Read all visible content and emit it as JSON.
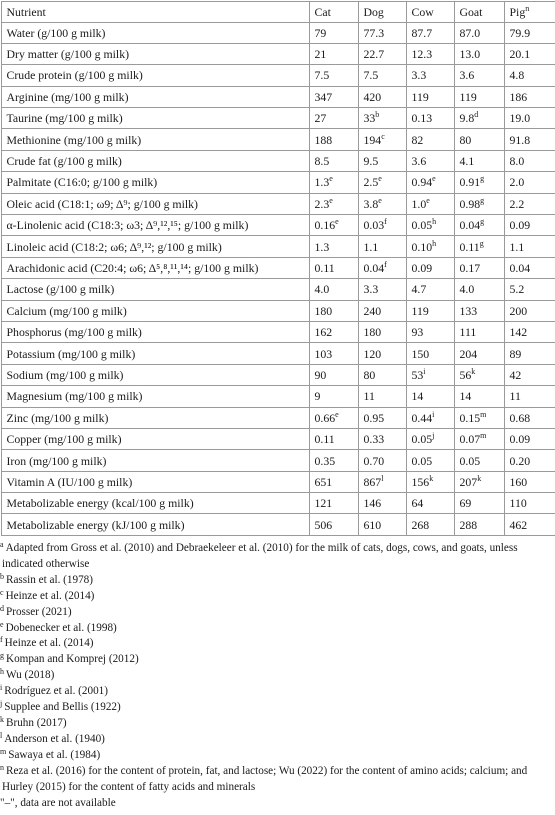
{
  "table": {
    "columns": [
      "Nutrient",
      "Cat",
      "Dog",
      "Cow",
      "Goat",
      "Pig"
    ],
    "column_markers": [
      "",
      "",
      "",
      "",
      "",
      "n"
    ],
    "rows": [
      {
        "label": "Water (g/100 g milk)",
        "values": [
          [
            "79",
            ""
          ],
          [
            "77.3",
            ""
          ],
          [
            "87.7",
            ""
          ],
          [
            "87.0",
            ""
          ],
          [
            "79.9",
            ""
          ]
        ]
      },
      {
        "label": "Dry matter (g/100 g milk)",
        "values": [
          [
            "21",
            ""
          ],
          [
            "22.7",
            ""
          ],
          [
            "12.3",
            ""
          ],
          [
            "13.0",
            ""
          ],
          [
            "20.1",
            ""
          ]
        ]
      },
      {
        "label": "Crude protein (g/100 g milk)",
        "values": [
          [
            "7.5",
            ""
          ],
          [
            "7.5",
            ""
          ],
          [
            "3.3",
            ""
          ],
          [
            "3.6",
            ""
          ],
          [
            "4.8",
            ""
          ]
        ]
      },
      {
        "label": "Arginine (mg/100 g milk)",
        "values": [
          [
            "347",
            ""
          ],
          [
            "420",
            ""
          ],
          [
            "119",
            ""
          ],
          [
            "119",
            ""
          ],
          [
            "186",
            ""
          ]
        ]
      },
      {
        "label": "Taurine (mg/100 g milk)",
        "values": [
          [
            "27",
            ""
          ],
          [
            "33",
            "b"
          ],
          [
            "0.13",
            ""
          ],
          [
            "9.8",
            "d"
          ],
          [
            "19.0",
            ""
          ]
        ]
      },
      {
        "label": "Methionine (mg/100 g milk)",
        "values": [
          [
            "188",
            ""
          ],
          [
            "194",
            "c"
          ],
          [
            "82",
            ""
          ],
          [
            "80",
            ""
          ],
          [
            "91.8",
            ""
          ]
        ]
      },
      {
        "label": "Crude fat (g/100 g milk)",
        "values": [
          [
            "8.5",
            ""
          ],
          [
            "9.5",
            ""
          ],
          [
            "3.6",
            ""
          ],
          [
            "4.1",
            ""
          ],
          [
            "8.0",
            ""
          ]
        ]
      },
      {
        "label": "Palmitate (C16:0; g/100 g milk)",
        "values": [
          [
            "1.3",
            "e"
          ],
          [
            "2.5",
            "e"
          ],
          [
            "0.94",
            "e"
          ],
          [
            "0.91",
            "g"
          ],
          [
            "2.0",
            ""
          ]
        ]
      },
      {
        "label": "Oleic acid (C18:1; ω9; Δ⁹; g/100 g milk)",
        "values": [
          [
            "2.3",
            "e"
          ],
          [
            "3.8",
            "e"
          ],
          [
            "1.0",
            "e"
          ],
          [
            "0.98",
            "g"
          ],
          [
            "2.2",
            ""
          ]
        ]
      },
      {
        "label": "α-Linolenic acid (C18:3; ω3; Δ⁹,¹²,¹⁵; g/100 g milk)",
        "values": [
          [
            "0.16",
            "e"
          ],
          [
            "0.03",
            "f"
          ],
          [
            "0.05",
            "h"
          ],
          [
            "0.04",
            "g"
          ],
          [
            "0.09",
            ""
          ]
        ]
      },
      {
        "label": "Linoleic acid (C18:2; ω6; Δ⁹,¹²; g/100 g milk)",
        "values": [
          [
            "1.3",
            ""
          ],
          [
            "1.1",
            ""
          ],
          [
            "0.10",
            "h"
          ],
          [
            "0.11",
            "g"
          ],
          [
            "1.1",
            ""
          ]
        ]
      },
      {
        "label": "Arachidonic acid (C20:4; ω6; Δ⁵,⁸,¹¹,¹⁴; g/100 g milk)",
        "values": [
          [
            "0.11",
            ""
          ],
          [
            "0.04",
            "f"
          ],
          [
            "0.09",
            ""
          ],
          [
            "0.17",
            ""
          ],
          [
            "0.04",
            ""
          ]
        ]
      },
      {
        "label": "Lactose (g/100 g milk)",
        "values": [
          [
            "4.0",
            ""
          ],
          [
            "3.3",
            ""
          ],
          [
            "4.7",
            ""
          ],
          [
            "4.0",
            ""
          ],
          [
            "5.2",
            ""
          ]
        ]
      },
      {
        "label": "Calcium (mg/100 g milk)",
        "values": [
          [
            "180",
            ""
          ],
          [
            "240",
            ""
          ],
          [
            "119",
            ""
          ],
          [
            "133",
            ""
          ],
          [
            "200",
            ""
          ]
        ]
      },
      {
        "label": "Phosphorus (mg/100 g milk)",
        "values": [
          [
            "162",
            ""
          ],
          [
            "180",
            ""
          ],
          [
            "93",
            ""
          ],
          [
            "111",
            ""
          ],
          [
            "142",
            ""
          ]
        ]
      },
      {
        "label": "Potassium (mg/100 g milk)",
        "values": [
          [
            "103",
            ""
          ],
          [
            "120",
            ""
          ],
          [
            "150",
            ""
          ],
          [
            "204",
            ""
          ],
          [
            "89",
            ""
          ]
        ]
      },
      {
        "label": "Sodium (mg/100 g milk)",
        "values": [
          [
            "90",
            ""
          ],
          [
            "80",
            ""
          ],
          [
            "53",
            "i"
          ],
          [
            "56",
            "k"
          ],
          [
            "42",
            ""
          ]
        ]
      },
      {
        "label": "Magnesium (mg/100 g milk)",
        "values": [
          [
            "9",
            ""
          ],
          [
            "11",
            ""
          ],
          [
            "14",
            ""
          ],
          [
            "14",
            ""
          ],
          [
            "11",
            ""
          ]
        ]
      },
      {
        "label": "Zinc (mg/100 g milk)",
        "values": [
          [
            "0.66",
            "e"
          ],
          [
            "0.95",
            ""
          ],
          [
            "0.44",
            "i"
          ],
          [
            "0.15",
            "m"
          ],
          [
            "0.68",
            ""
          ]
        ]
      },
      {
        "label": "Copper (mg/100 g milk)",
        "values": [
          [
            "0.11",
            ""
          ],
          [
            "0.33",
            ""
          ],
          [
            "0.05",
            "j"
          ],
          [
            "0.07",
            "m"
          ],
          [
            "0.09",
            ""
          ]
        ]
      },
      {
        "label": "Iron (mg/100 g milk)",
        "values": [
          [
            "0.35",
            ""
          ],
          [
            "0.70",
            ""
          ],
          [
            "0.05",
            ""
          ],
          [
            "0.05",
            ""
          ],
          [
            "0.20",
            ""
          ]
        ]
      },
      {
        "label": "Vitamin A (IU/100 g milk)",
        "values": [
          [
            "651",
            ""
          ],
          [
            "867",
            "l"
          ],
          [
            "156",
            "k"
          ],
          [
            "207",
            "k"
          ],
          [
            "160",
            ""
          ]
        ]
      },
      {
        "label": "Metabolizable energy (kcal/100 g milk)",
        "values": [
          [
            "121",
            ""
          ],
          [
            "146",
            ""
          ],
          [
            "64",
            ""
          ],
          [
            "69",
            ""
          ],
          [
            "110",
            ""
          ]
        ]
      },
      {
        "label": "Metabolizable energy (kJ/100 g milk)",
        "values": [
          [
            "506",
            ""
          ],
          [
            "610",
            ""
          ],
          [
            "268",
            ""
          ],
          [
            "288",
            ""
          ],
          [
            "462",
            ""
          ]
        ]
      }
    ]
  },
  "footnotes": [
    {
      "marker": "a",
      "text": "Adapted from Gross et al. (2010) and Debraekeleer et al. (2010) for the milk of cats, dogs, cows, and goats, unless indicated otherwise"
    },
    {
      "marker": "b",
      "text": "Rassin et al. (1978)"
    },
    {
      "marker": "c",
      "text": "Heinze et al. (2014)"
    },
    {
      "marker": "d",
      "text": "Prosser (2021)"
    },
    {
      "marker": "e",
      "text": "Dobenecker et al. (1998)"
    },
    {
      "marker": "f",
      "text": "Heinze et al. (2014)"
    },
    {
      "marker": "g",
      "text": "Kompan and Komprej (2012)"
    },
    {
      "marker": "h",
      "text": "Wu (2018)"
    },
    {
      "marker": "i",
      "text": "Rodríguez et al. (2001)"
    },
    {
      "marker": "j",
      "text": "Supplee and Bellis (1922)"
    },
    {
      "marker": "k",
      "text": "Bruhn (2017)"
    },
    {
      "marker": "l",
      "text": "Anderson et al. (1940)"
    },
    {
      "marker": "m",
      "text": "Sawaya et al. (1984)"
    },
    {
      "marker": "n",
      "text": "Reza et al. (2016) for the content of protein, fat, and lactose; Wu (2022) for the content of amino acids; calcium; and Hurley (2015) for the content of fatty acids and minerals"
    },
    {
      "marker": "",
      "text": "\"–\", data are not available"
    }
  ],
  "colors": {
    "text": "#1a1a1a",
    "border": "#9a9a9a",
    "link": "#1f5fa8"
  }
}
